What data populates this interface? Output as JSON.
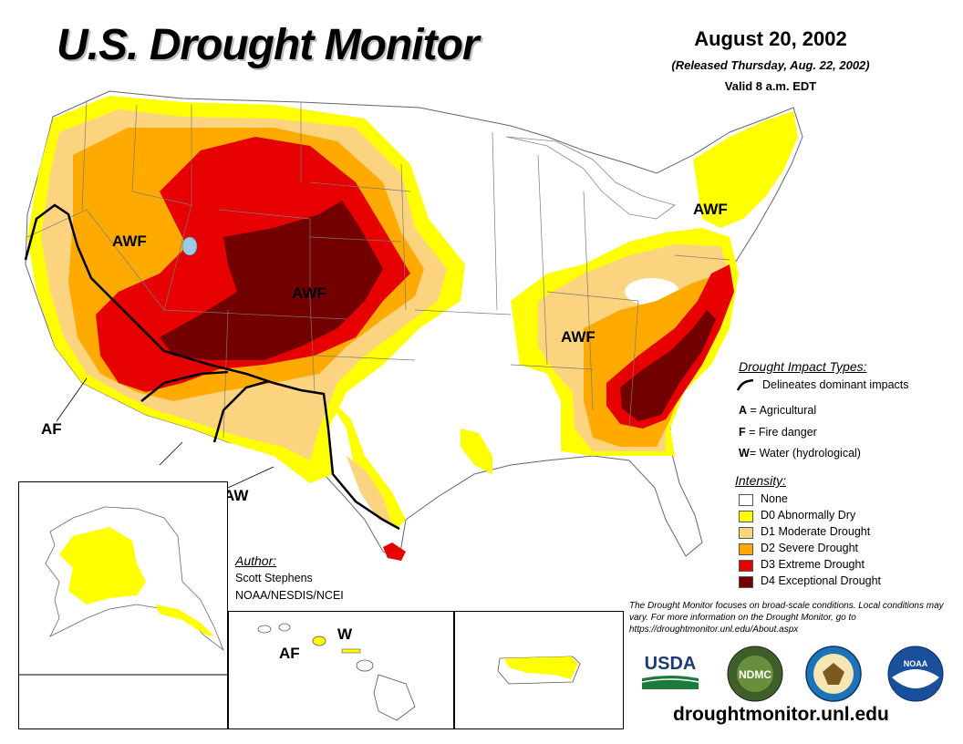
{
  "header": {
    "title": "U.S. Drought Monitor",
    "date": "August 20, 2002",
    "released": "(Released Thursday, Aug. 22, 2002)",
    "valid": "Valid 8 a.m. EDT"
  },
  "map_labels": {
    "awf_west": "AWF",
    "awf_central": "AWF",
    "awf_southeast": "AWF",
    "awf_northeast": "AWF",
    "af_california": "AF",
    "aw_southwest": "AW",
    "af_hawaii": "AF",
    "w_hawaii": "W"
  },
  "legend": {
    "impact_title": "Drought Impact Types:",
    "delineates": "Delineates dominant impacts",
    "impacts": [
      {
        "key": "A",
        "text": " = Agricultural"
      },
      {
        "key": "F",
        "text": " = Fire danger"
      },
      {
        "key": "W",
        "text": "= Water (hydrological)"
      }
    ],
    "intensity_title": "Intensity:",
    "intensity": [
      {
        "label": "None",
        "color": "#ffffff"
      },
      {
        "label": "D0 Abnormally Dry",
        "color": "#ffff00"
      },
      {
        "label": "D1 Moderate Drought",
        "color": "#fcd37f"
      },
      {
        "label": "D2 Severe Drought",
        "color": "#ffaa00"
      },
      {
        "label": "D3 Extreme Drought",
        "color": "#e60000"
      },
      {
        "label": "D4 Exceptional Drought",
        "color": "#730000"
      }
    ]
  },
  "author": {
    "title": "Author:",
    "name": "Scott Stephens",
    "org": "NOAA/NESDIS/NCEI"
  },
  "note": "The Drought Monitor focuses on broad-scale conditions. Local conditions may vary. For more information on the Drought Monitor, go to https://droughtmonitor.unl.edu/About.aspx",
  "logos": {
    "usda": "USDA",
    "ndmc": "NDMC",
    "noaa": "NOAA"
  },
  "footer_url": "droughtmonitor.unl.edu"
}
